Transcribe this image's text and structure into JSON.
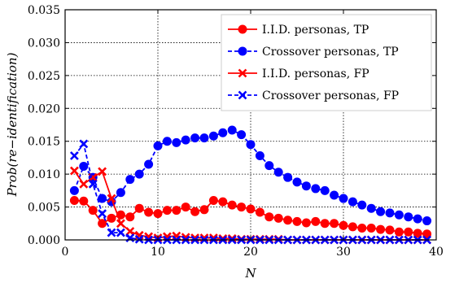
{
  "chart_data": {
    "type": "line",
    "xlabel": "N",
    "ylabel": "Prob(re−identification)",
    "xlim": [
      0,
      40
    ],
    "ylim": [
      0,
      0.035
    ],
    "xticks": [
      0,
      10,
      20,
      30,
      40
    ],
    "xtick_labels": [
      "0",
      "10",
      "20",
      "30",
      "40"
    ],
    "yticks": [
      0,
      0.005,
      0.01,
      0.015,
      0.02,
      0.025,
      0.03,
      0.035
    ],
    "ytick_labels": [
      "0.000",
      "0.005",
      "0.010",
      "0.015",
      "0.020",
      "0.025",
      "0.030",
      "0.035"
    ],
    "grid": true,
    "legend_position": "top-right",
    "x": [
      1,
      2,
      3,
      4,
      5,
      6,
      7,
      8,
      9,
      10,
      11,
      12,
      13,
      14,
      15,
      16,
      17,
      18,
      19,
      20,
      21,
      22,
      23,
      24,
      25,
      26,
      27,
      28,
      29,
      30,
      31,
      32,
      33,
      34,
      35,
      36,
      37,
      38,
      39
    ],
    "series": [
      {
        "name": "I.I.D. personas, TP",
        "color": "#ff0000",
        "line_style": "solid",
        "marker": "circle",
        "values": [
          0.006,
          0.0059,
          0.0045,
          0.0025,
          0.0033,
          0.0038,
          0.0035,
          0.0048,
          0.0042,
          0.004,
          0.0045,
          0.0045,
          0.005,
          0.0043,
          0.0046,
          0.006,
          0.0058,
          0.0053,
          0.005,
          0.0047,
          0.0042,
          0.0035,
          0.0033,
          0.003,
          0.0028,
          0.0026,
          0.0028,
          0.0025,
          0.0025,
          0.0022,
          0.002,
          0.0018,
          0.0018,
          0.0016,
          0.0015,
          0.0012,
          0.0012,
          0.001,
          0.0009
        ]
      },
      {
        "name": "Crossover personas, TP",
        "color": "#0000ff",
        "line_style": "dashed",
        "marker": "circle",
        "values": [
          0.0075,
          0.0112,
          0.0095,
          0.0063,
          0.0058,
          0.0072,
          0.0092,
          0.01,
          0.0115,
          0.0143,
          0.015,
          0.0148,
          0.0152,
          0.0155,
          0.0155,
          0.0158,
          0.0163,
          0.0167,
          0.016,
          0.0145,
          0.0128,
          0.0113,
          0.0103,
          0.0095,
          0.0088,
          0.0082,
          0.0078,
          0.0075,
          0.0068,
          0.0063,
          0.0058,
          0.0053,
          0.0048,
          0.0043,
          0.0041,
          0.0038,
          0.0035,
          0.0032,
          0.0029
        ]
      },
      {
        "name": "I.I.D. personas, FP",
        "color": "#ff0000",
        "line_style": "solid",
        "marker": "x",
        "values": [
          0.0105,
          0.0085,
          0.0095,
          0.0104,
          0.0063,
          0.0025,
          0.0013,
          0.0007,
          0.0005,
          0.0003,
          0.0005,
          0.0006,
          0.0004,
          0.0003,
          0.0003,
          0.0003,
          0.0002,
          0.0002,
          0.0001,
          0.0001,
          0.0001,
          0.0001,
          0.0001,
          0,
          0,
          0,
          0,
          0,
          0,
          0,
          0,
          0,
          0,
          0,
          0,
          0,
          0,
          0,
          0
        ]
      },
      {
        "name": "Crossover personas, FP",
        "color": "#0000ff",
        "line_style": "dashed",
        "marker": "x",
        "values": [
          0.0128,
          0.0146,
          0.0085,
          0.004,
          0.0011,
          0.0011,
          0.0003,
          0.0001,
          0,
          0,
          0,
          0,
          0,
          0,
          0,
          0,
          0,
          0,
          0,
          0,
          0,
          0,
          0,
          0,
          0,
          0,
          0,
          0,
          0,
          0,
          0,
          0,
          0,
          0,
          0,
          0,
          0,
          0,
          0
        ]
      }
    ]
  }
}
